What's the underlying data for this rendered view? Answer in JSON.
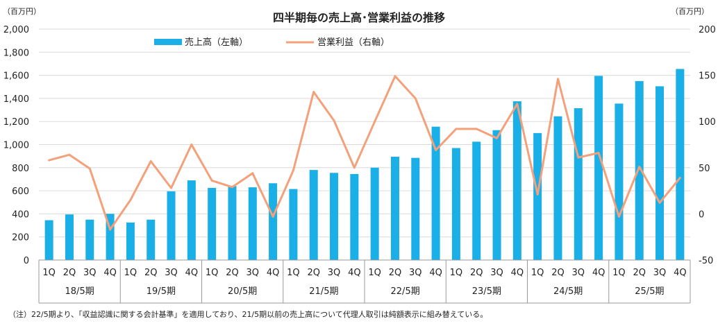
{
  "chart_data": {
    "type": "bar",
    "title": "四半期毎の売上高･営業利益の推移",
    "left_unit": "（百万円）",
    "right_unit": "（百万円）",
    "note": "（注）22/5期より、「収益認識に関する会計基準」を適用しており、21/5期以前の売上高について代理人取引は純額表示に組み替えている。",
    "quarters": [
      "1Q",
      "2Q",
      "3Q",
      "4Q",
      "1Q",
      "2Q",
      "3Q",
      "4Q",
      "1Q",
      "2Q",
      "3Q",
      "4Q",
      "1Q",
      "2Q",
      "3Q",
      "4Q",
      "1Q",
      "2Q",
      "3Q",
      "4Q",
      "1Q",
      "2Q",
      "3Q",
      "4Q",
      "1Q",
      "2Q",
      "3Q",
      "4Q",
      "1Q",
      "2Q",
      "3Q",
      "4Q"
    ],
    "periods": [
      "18/5期",
      "19/5期",
      "20/5期",
      "21/5期",
      "22/5期",
      "23/5期",
      "24/5期",
      "25/5期"
    ],
    "left_ticks": [
      "0",
      "200",
      "400",
      "600",
      "800",
      "1,000",
      "1,200",
      "1,400",
      "1,600",
      "1,800",
      "2,000"
    ],
    "right_ticks": [
      "-50",
      "0",
      "50",
      "100",
      "150",
      "200"
    ],
    "left_ylim": [
      0,
      2000
    ],
    "right_ylim": [
      -50,
      200
    ],
    "grid": true,
    "legend_position": "top-center",
    "series": [
      {
        "name": "売上高（左軸）",
        "type": "bar",
        "axis": "left",
        "color": "#1AAFE6",
        "values": [
          345,
          395,
          350,
          400,
          325,
          350,
          595,
          690,
          625,
          640,
          630,
          665,
          615,
          780,
          755,
          745,
          800,
          895,
          885,
          1155,
          970,
          1025,
          1125,
          1375,
          1100,
          1245,
          1315,
          1595,
          1355,
          1550,
          1505,
          1655
        ]
      },
      {
        "name": "営業利益（右軸）",
        "type": "line",
        "axis": "right",
        "color": "#F4A07A",
        "values": [
          58,
          64,
          49,
          -17,
          15,
          57,
          28,
          75,
          36,
          29,
          44,
          -3,
          47,
          132,
          101,
          50,
          100,
          149,
          125,
          69,
          92,
          92,
          82,
          119,
          21,
          146,
          61,
          66,
          -3,
          51,
          12,
          39
        ]
      }
    ]
  }
}
